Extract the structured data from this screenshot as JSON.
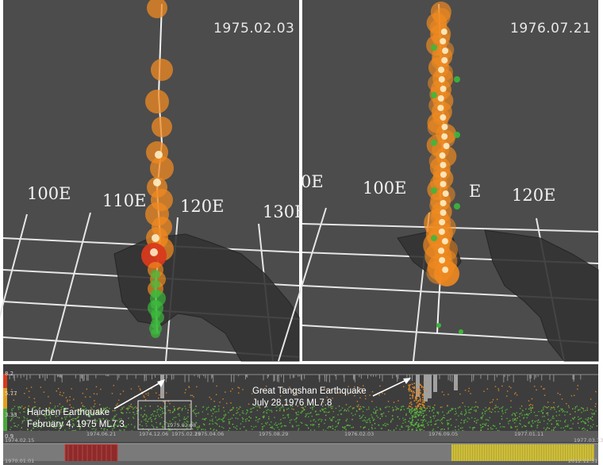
{
  "left_view": {
    "date": "1975.02.03",
    "lon_labels": [
      "100E",
      "110E",
      "120E",
      "130E"
    ]
  },
  "right_view": {
    "date": "1976.07.21",
    "lon_labels": [
      "0E",
      "100E",
      "E",
      "120E"
    ]
  },
  "timeline": {
    "y_ticks": [
      "8.2",
      "5.77",
      "3.33",
      "0.9"
    ],
    "ann_haicheng": [
      "Haichen Earthquake",
      "February 4, 1975 ML7.3"
    ],
    "ann_tangshan": [
      "Great Tangshan Earthquake",
      "July 28,1976 ML7.8"
    ],
    "top_ticks": [
      "1974.02.15",
      "1974.06.21",
      "1974.12.06",
      "1975.02.23",
      "1975.04.06",
      "1975.08.29",
      "1976.02.03",
      "1976.09.05",
      "1977.01.11",
      "1977.03.13"
    ],
    "selection_labels": [
      "1975.02.08"
    ],
    "bottom_ticks": [
      "1970.01.01",
      "2012.12.31"
    ]
  },
  "colors": {
    "background": "#4c4c4c",
    "grid_line": "#e6e6e6",
    "event_orange": "#f08a20",
    "event_red": "#d83a1c",
    "event_green": "#3cb83c",
    "trace_white": "#f4f4f4",
    "brush_red": "#8e2a2a",
    "brush_yellow": "#d8c840"
  }
}
